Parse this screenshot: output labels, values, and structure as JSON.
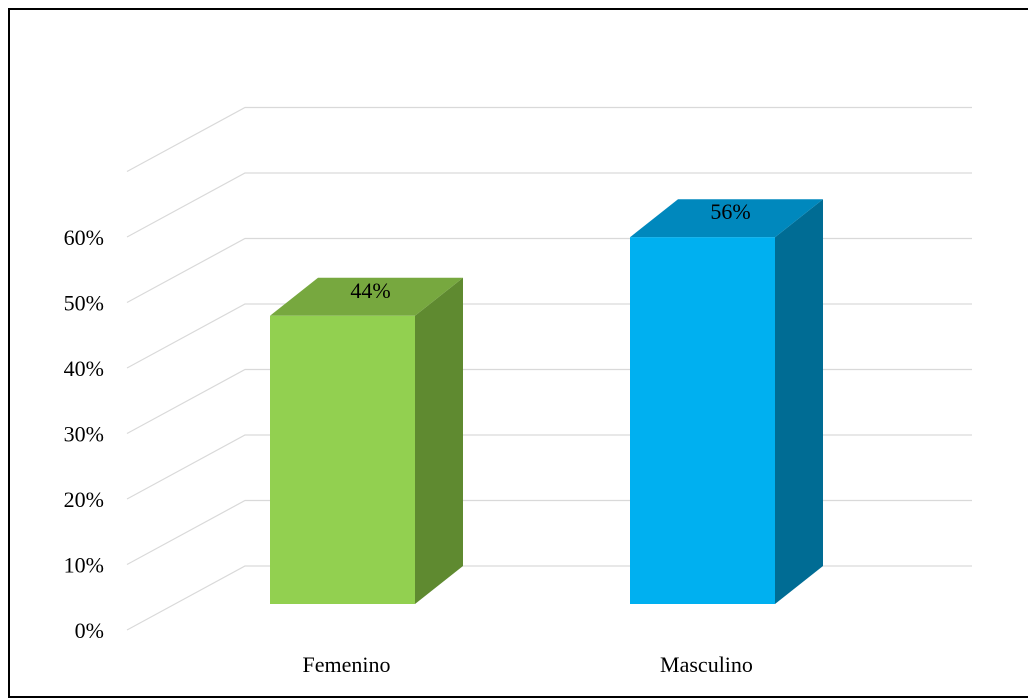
{
  "chart_data": {
    "type": "bar",
    "three_d": true,
    "categories": [
      "Femenino",
      "Masculino"
    ],
    "values": [
      44,
      56
    ],
    "data_labels": [
      "44%",
      "56%"
    ],
    "title": "",
    "xlabel": "",
    "ylabel": "",
    "ylim": [
      0,
      70
    ],
    "y_ticks": [
      0,
      10,
      20,
      30,
      40,
      50,
      60
    ],
    "y_tick_labels": [
      "0%",
      "10%",
      "20%",
      "30%",
      "40%",
      "50%",
      "60%"
    ],
    "grid": true,
    "legend": "none",
    "colors": {
      "Femenino": {
        "front": "#92d050",
        "side": "#5f8a30",
        "top": "#77a83f"
      },
      "Masculino": {
        "front": "#00b0f0",
        "side": "#006c94",
        "top": "#0088bd"
      },
      "grid": "#d9d9d9"
    }
  }
}
